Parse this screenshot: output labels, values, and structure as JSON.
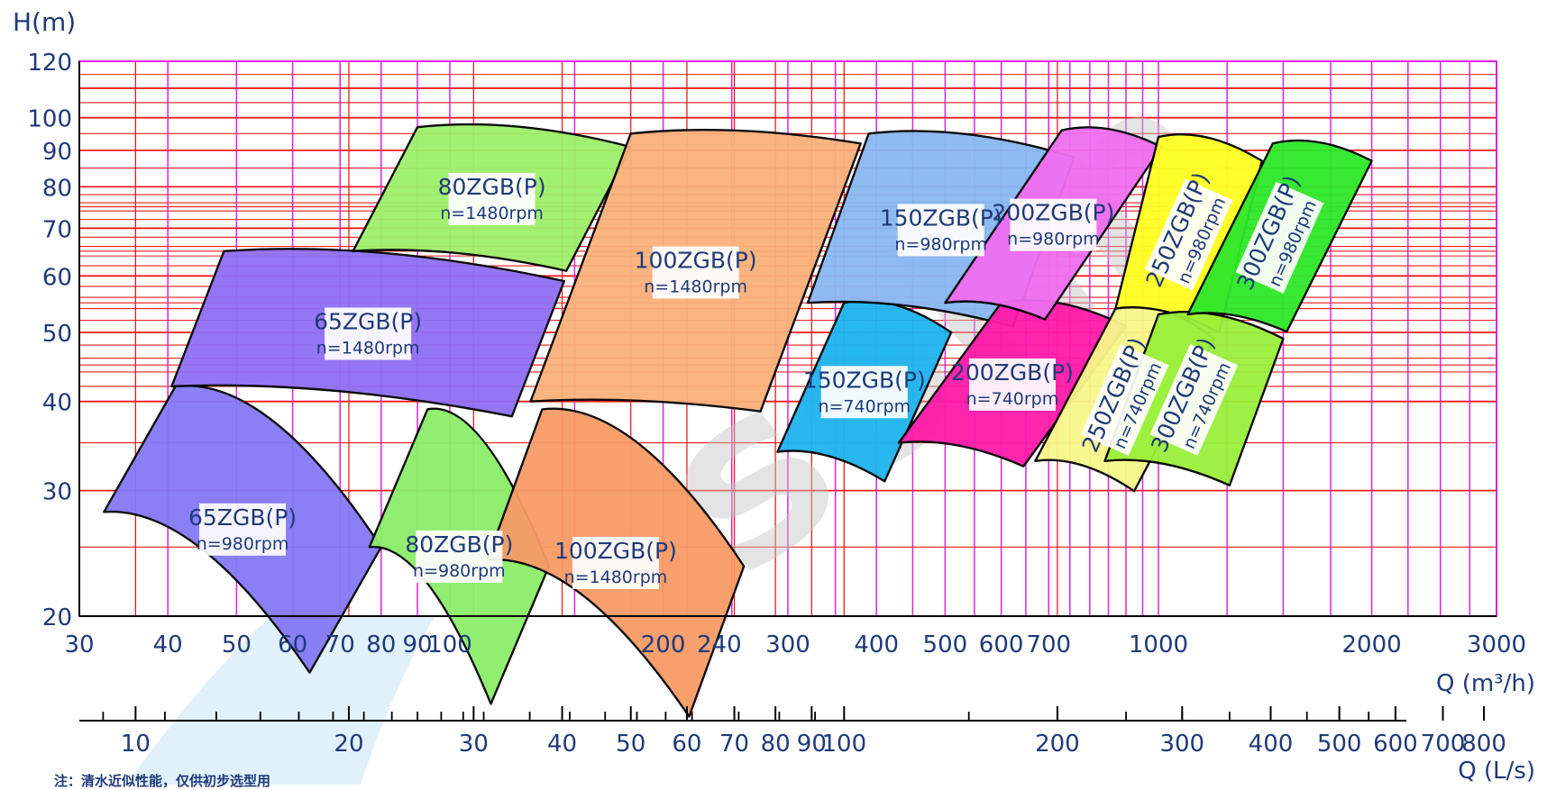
{
  "chart_data": {
    "type": "area",
    "title": "",
    "ylabel": "H(m)",
    "xlabel": "Q (m³/h)",
    "x2label": "Q (L/s)",
    "x_scale": "log",
    "y_scale": "log",
    "xlim": [
      30,
      3000
    ],
    "ylim": [
      20,
      120
    ],
    "x2lim": [
      8.33,
      833.3
    ],
    "grid": true,
    "y_ticks": [
      20,
      30,
      40,
      50,
      60,
      70,
      80,
      90,
      100,
      120
    ],
    "x_ticks": [
      30,
      40,
      50,
      60,
      70,
      80,
      90,
      100,
      200,
      240,
      300,
      400,
      500,
      600,
      700,
      1000,
      2000,
      3000
    ],
    "x2_ticks": [
      10,
      20,
      30,
      40,
      50,
      60,
      70,
      80,
      90,
      100,
      200,
      300,
      400,
      500,
      600,
      700,
      800
    ],
    "colors": {
      "grid_h": "#ee1c1c",
      "grid_v": "#dd22dd",
      "axis_text": "#1f3a7a",
      "watermark": "#c4c4c4",
      "swoosh": "#c9e6f5"
    },
    "series": [
      {
        "name": "65ZGB(P)",
        "speed": "n=980rpm",
        "color": "#8479f5",
        "q": [
          32.5,
          41,
          80
        ],
        "h": [
          28,
          42,
          25
        ]
      },
      {
        "name": "80ZGB(P)",
        "speed": "n=980rpm",
        "color": "#8cee6a",
        "q": [
          77,
          93,
          138
        ],
        "h": [
          25,
          39,
          23.5
        ]
      },
      {
        "name": "100ZGB(P)",
        "speed": "n=1480rpm",
        "color": "#f79a66",
        "q": [
          113,
          135,
          260
        ],
        "h": [
          24,
          39,
          23.5
        ]
      },
      {
        "name": "65ZGB(P)",
        "speed": "n=1480rpm",
        "color": "#8f6ff5",
        "q": [
          40.5,
          48,
          145
        ],
        "h": [
          42,
          65,
          59
        ]
      },
      {
        "name": "80ZGB(P)",
        "speed": "n=1480rpm",
        "color": "#9ef06a",
        "q": [
          73,
          90,
          180
        ],
        "h": [
          65,
          97,
          91
        ]
      },
      {
        "name": "100ZGB(P)",
        "speed": "n=1480rpm",
        "color": "#f9b07a",
        "q": [
          130,
          180,
          380
        ],
        "h": [
          40,
          95,
          92
        ]
      },
      {
        "name": "150ZGB(P)",
        "speed": "n=740rpm",
        "color": "#1eb4f0",
        "q": [
          290,
          360,
          510
        ],
        "h": [
          34,
          55,
          50
        ]
      },
      {
        "name": "150ZGB(P)",
        "speed": "n=980rpm",
        "color": "#88b8f2",
        "q": [
          320,
          390,
          760
        ],
        "h": [
          55,
          95,
          88
        ]
      },
      {
        "name": "200ZGB(P)",
        "speed": "n=740rpm",
        "color": "#ff1aa9",
        "q": [
          430,
          600,
          900
        ],
        "h": [
          35,
          55,
          51
        ]
      },
      {
        "name": "200ZGB(P)",
        "speed": "n=980rpm",
        "color": "#f06ef0",
        "q": [
          500,
          730,
          1010
        ],
        "h": [
          55,
          96,
          91
        ]
      },
      {
        "name": "250ZGB(P)",
        "speed": "n=740rpm",
        "color": "#f7f78a",
        "q": [
          670,
          870,
          1200
        ],
        "h": [
          33,
          54,
          49
        ]
      },
      {
        "name": "250ZGB(P)",
        "speed": "n=980rpm",
        "color": "#ffff22",
        "q": [
          870,
          1000,
          1400
        ],
        "h": [
          54,
          94,
          87
        ]
      },
      {
        "name": "300ZGB(P)",
        "speed": "n=740rpm",
        "color": "#99f03a",
        "q": [
          840,
          1000,
          1500
        ],
        "h": [
          33,
          53,
          49
        ]
      },
      {
        "name": "300ZGB(P)",
        "speed": "n=980rpm",
        "color": "#2ee82a",
        "q": [
          1100,
          1450,
          2000
        ],
        "h": [
          53,
          92,
          87
        ]
      }
    ],
    "watermark_text": "sohn",
    "note": "注：清水近似性能，仅供初步选型用"
  }
}
